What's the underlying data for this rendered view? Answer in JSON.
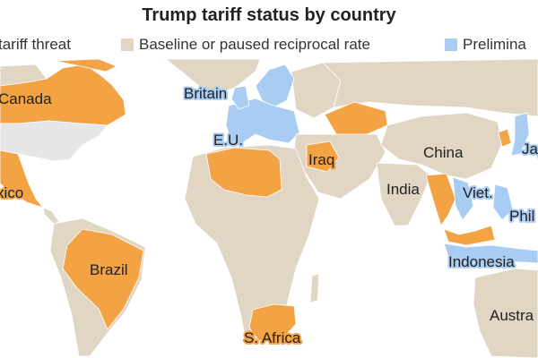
{
  "title": "Trump tariff status by country",
  "legend": [
    {
      "key": "threat",
      "label": "tariff threat",
      "color": "#f3a244"
    },
    {
      "key": "baseline",
      "label": "Baseline or paused reciprocal rate",
      "color": "#e1d6c3"
    },
    {
      "key": "preliminary",
      "label": "Prelimina",
      "color": "#a9cdf2"
    }
  ],
  "colors": {
    "ocean": "#ffffff",
    "land": "#e1d6c3",
    "border": "#ffffff",
    "threat": "#f3a244",
    "preliminary": "#a9cdf2",
    "usa": "#e6e6e6"
  },
  "labels": {
    "canada": "Canada",
    "mexico": "xico",
    "brazil": "Brazil",
    "britain": "Britain",
    "eu": "E.U.",
    "iraq": "Iraq",
    "china": "China",
    "india": "India",
    "viet": "Viet.",
    "phil": "Phil",
    "indonesia": "Indonesia",
    "japan": "Jap",
    "south_africa": "S. Africa",
    "australia": "Austra"
  }
}
